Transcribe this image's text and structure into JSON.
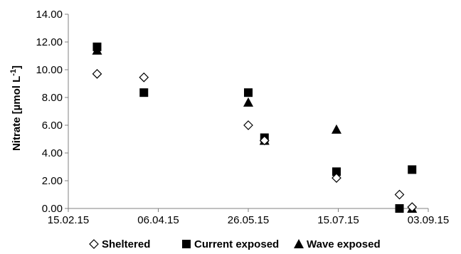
{
  "chart_data": {
    "type": "scatter",
    "ylabel": "Nitrate [µmol L",
    "ylabel_superscript": "-1",
    "ylabel_close": "]",
    "xlabel": "",
    "ylim": [
      0,
      14
    ],
    "yticks": [
      "0.00",
      "2.00",
      "4.00",
      "6.00",
      "8.00",
      "10.00",
      "12.00",
      "14.00"
    ],
    "xlim": [
      "2015-02-15",
      "2015-09-03"
    ],
    "xticks": [
      {
        "date": "2015-02-15",
        "label": "15.02.15"
      },
      {
        "date": "2015-04-06",
        "label": "06.04.15"
      },
      {
        "date": "2015-05-26",
        "label": "26.05.15"
      },
      {
        "date": "2015-07-15",
        "label": "15.07.15"
      },
      {
        "date": "2015-09-03",
        "label": "03.09.15"
      }
    ],
    "grid": false,
    "legend_position": "bottom",
    "series": [
      {
        "name": "Sheltered",
        "marker": "diamond-open",
        "points": [
          {
            "x": "2015-03-03",
            "y": 9.7
          },
          {
            "x": "2015-03-29",
            "y": 9.45
          },
          {
            "x": "2015-05-26",
            "y": 6.0
          },
          {
            "x": "2015-06-04",
            "y": 4.9
          },
          {
            "x": "2015-07-14",
            "y": 2.2
          },
          {
            "x": "2015-08-18",
            "y": 1.0
          },
          {
            "x": "2015-08-25",
            "y": 0.1
          }
        ]
      },
      {
        "name": "Current exposed",
        "marker": "square-filled",
        "points": [
          {
            "x": "2015-03-03",
            "y": 11.65
          },
          {
            "x": "2015-03-29",
            "y": 8.35
          },
          {
            "x": "2015-05-26",
            "y": 8.35
          },
          {
            "x": "2015-06-04",
            "y": 5.1
          },
          {
            "x": "2015-07-14",
            "y": 2.65
          },
          {
            "x": "2015-08-18",
            "y": 0.0
          },
          {
            "x": "2015-08-25",
            "y": 2.8
          }
        ]
      },
      {
        "name": "Wave exposed",
        "marker": "triangle-filled",
        "points": [
          {
            "x": "2015-03-03",
            "y": 11.4
          },
          {
            "x": "2015-05-26",
            "y": 7.65
          },
          {
            "x": "2015-06-04",
            "y": 4.9
          },
          {
            "x": "2015-07-14",
            "y": 5.7
          },
          {
            "x": "2015-08-25",
            "y": 0.0
          }
        ]
      }
    ],
    "colors": {
      "axis": "#808080",
      "marker": "#000000"
    }
  }
}
